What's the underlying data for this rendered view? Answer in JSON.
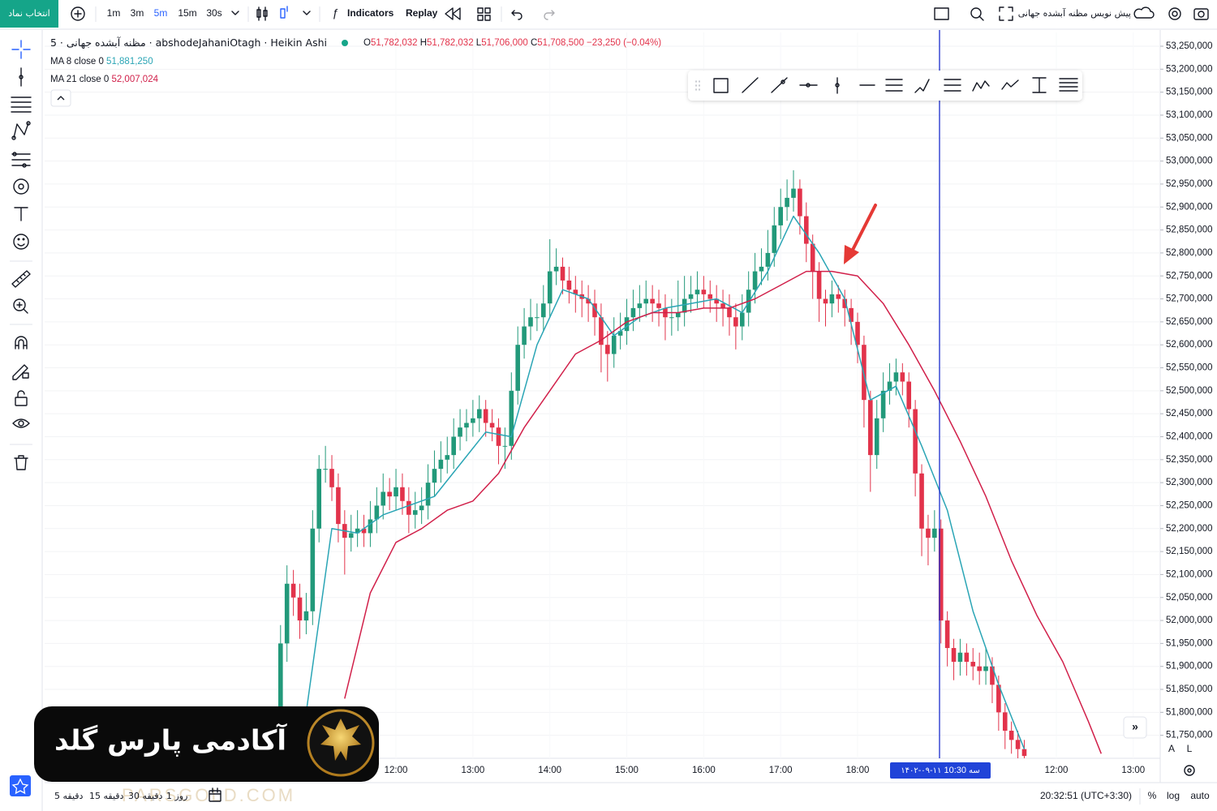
{
  "toolbar": {
    "symbol_button": "انتخاب نماد",
    "intervals": [
      "1m",
      "3m",
      "5m",
      "15m",
      "30s"
    ],
    "indicators": "Indicators",
    "replay": "Replay",
    "draft": "پیش نویس مظنه آبشده جهانی"
  },
  "chart_data": {
    "type": "candlestick",
    "title": "مظنه آبشده جهانی · 5 · abshodeJahaniOtagh · Heikin Ashi",
    "ohlc": [
      {
        "key": "O",
        "value": "51,782,032"
      },
      {
        "key": "H",
        "value": "51,782,032"
      },
      {
        "key": "L",
        "value": "51,706,000"
      },
      {
        "key": "C",
        "value": "51,708,500"
      }
    ],
    "change": "−23,250 (−0.04%)",
    "up_color": "#22997a",
    "down_color": "#e2334b",
    "series": [
      {
        "open": [
          51720000,
          51950000,
          52080000,
          52050000,
          52000000,
          52020000,
          52200000,
          52330000,
          52330000,
          52290000,
          52210000,
          52180000,
          52190000,
          52200000,
          52190000,
          52220000,
          52250000,
          52280000,
          52270000,
          52290000,
          52260000,
          52230000,
          52240000,
          52250000,
          52300000,
          52330000,
          52350000,
          52360000,
          52400000,
          52420000,
          52430000,
          52440000,
          52460000,
          52430000,
          52420000,
          52380000,
          52380000,
          52500000,
          52600000,
          52640000,
          52660000,
          52660000,
          52690000,
          52760000,
          52770000,
          52740000,
          52720000,
          52710000,
          52700000,
          52690000,
          52660000,
          52600000,
          52580000,
          52620000,
          52630000,
          52660000,
          52680000,
          52690000,
          52700000,
          52690000,
          52680000,
          52660000,
          52660000,
          52670000,
          52700000,
          52710000,
          52720000,
          52710000,
          52700000,
          52690000,
          52680000,
          52660000,
          52640000,
          52670000,
          52720000,
          52760000,
          52770000,
          52800000,
          52860000,
          52900000,
          52920000,
          52940000,
          52880000,
          52820000,
          52760000,
          52700000,
          52690000,
          52710000,
          52700000,
          52680000,
          52650000,
          52600000,
          52480000,
          52360000,
          52440000,
          52500000,
          52520000,
          52540000,
          52520000,
          52460000,
          52320000,
          52200000,
          52180000,
          52200000,
          52000000,
          51940000,
          51910000,
          51930000,
          51910000,
          51900000,
          51890000,
          51900000,
          51860000,
          51800000,
          51760000,
          51740000,
          51720000
        ],
        "high": [
          51990000,
          52120000,
          52110000,
          52080000,
          52060000,
          52240000,
          52360000,
          52380000,
          52360000,
          52320000,
          52240000,
          52230000,
          52240000,
          52230000,
          52260000,
          52290000,
          52320000,
          52310000,
          52330000,
          52320000,
          52290000,
          52280000,
          52290000,
          52340000,
          52370000,
          52390000,
          52400000,
          52440000,
          52460000,
          52460000,
          52480000,
          52490000,
          52480000,
          52460000,
          52440000,
          52420000,
          52540000,
          52640000,
          52680000,
          52700000,
          52690000,
          52730000,
          52830000,
          52810000,
          52790000,
          52770000,
          52750000,
          52740000,
          52730000,
          52720000,
          52690000,
          52630000,
          52660000,
          52670000,
          52700000,
          52720000,
          52730000,
          52740000,
          52730000,
          52720000,
          52710000,
          52700000,
          52740000,
          52750000,
          52750000,
          52760000,
          52750000,
          52740000,
          52730000,
          52720000,
          52710000,
          52690000,
          52710000,
          52760000,
          52800000,
          52810000,
          52850000,
          52900000,
          52940000,
          52960000,
          52980000,
          52960000,
          52910000,
          52840000,
          52780000,
          52720000,
          52740000,
          52730000,
          52720000,
          52700000,
          52670000,
          52620000,
          52500000,
          52480000,
          52540000,
          52560000,
          52570000,
          52560000,
          52540000,
          52480000,
          52340000,
          52230000,
          52240000,
          52220000,
          52020000,
          51960000,
          51960000,
          51950000,
          51940000,
          51930000,
          51940000,
          51920000,
          51880000,
          51820000,
          51780000,
          51760000,
          51740000
        ],
        "low": [
          51700000,
          51910000,
          52010000,
          51960000,
          51970000,
          51990000,
          52170000,
          52300000,
          52260000,
          52170000,
          52100000,
          52150000,
          52160000,
          52160000,
          52160000,
          52190000,
          52220000,
          52240000,
          52240000,
          52230000,
          52190000,
          52200000,
          52210000,
          52220000,
          52270000,
          52300000,
          52320000,
          52330000,
          52370000,
          52390000,
          52400000,
          52410000,
          52400000,
          52390000,
          52340000,
          52330000,
          52350000,
          52470000,
          52570000,
          52610000,
          52630000,
          52630000,
          52660000,
          52730000,
          52710000,
          52690000,
          52670000,
          52660000,
          52650000,
          52620000,
          52540000,
          52520000,
          52550000,
          52590000,
          52600000,
          52630000,
          52650000,
          52660000,
          52650000,
          52640000,
          52610000,
          52620000,
          52630000,
          52640000,
          52670000,
          52680000,
          52680000,
          52670000,
          52650000,
          52640000,
          52620000,
          52590000,
          52610000,
          52640000,
          52690000,
          52730000,
          52740000,
          52770000,
          52830000,
          52870000,
          52890000,
          52840000,
          52780000,
          52700000,
          52650000,
          52640000,
          52660000,
          52670000,
          52640000,
          52600000,
          52560000,
          52420000,
          52280000,
          52330000,
          52410000,
          52470000,
          52490000,
          52490000,
          52420000,
          52270000,
          52140000,
          52120000,
          52150000,
          51950000,
          51900000,
          51870000,
          51880000,
          51880000,
          51870000,
          51860000,
          51860000,
          51820000,
          51760000,
          51720000,
          51710000,
          51700000,
          51700000
        ],
        "close": [
          51950000,
          52080000,
          52050000,
          52000000,
          52020000,
          52200000,
          52330000,
          52330000,
          52290000,
          52210000,
          52180000,
          52190000,
          52200000,
          52190000,
          52220000,
          52250000,
          52280000,
          52270000,
          52290000,
          52260000,
          52230000,
          52240000,
          52250000,
          52300000,
          52330000,
          52350000,
          52360000,
          52400000,
          52420000,
          52430000,
          52440000,
          52460000,
          52430000,
          52420000,
          52380000,
          52380000,
          52500000,
          52600000,
          52640000,
          52660000,
          52660000,
          52690000,
          52760000,
          52770000,
          52740000,
          52720000,
          52710000,
          52700000,
          52690000,
          52660000,
          52600000,
          52580000,
          52620000,
          52630000,
          52660000,
          52680000,
          52690000,
          52700000,
          52690000,
          52680000,
          52660000,
          52660000,
          52670000,
          52700000,
          52710000,
          52720000,
          52710000,
          52700000,
          52690000,
          52680000,
          52660000,
          52640000,
          52670000,
          52720000,
          52760000,
          52770000,
          52800000,
          52860000,
          52900000,
          52920000,
          52940000,
          52880000,
          52820000,
          52760000,
          52700000,
          52690000,
          52710000,
          52700000,
          52680000,
          52650000,
          52600000,
          52480000,
          52360000,
          52440000,
          52500000,
          52520000,
          52540000,
          52520000,
          52460000,
          52320000,
          52200000,
          52180000,
          52200000,
          52000000,
          51940000,
          51910000,
          51930000,
          51910000,
          51900000,
          51890000,
          51900000,
          51860000,
          51800000,
          51760000,
          51740000,
          51720000,
          51705000
        ]
      }
    ],
    "lines": [
      {
        "name": "MA 8 close 0",
        "value_label": "51,881,250",
        "color": "#2aa5b5",
        "x": [
          4,
          8,
          12,
          16,
          20,
          24,
          28,
          32,
          36,
          40,
          44,
          48,
          52,
          56,
          60,
          64,
          68,
          72,
          76,
          80,
          84,
          88,
          92,
          96,
          100,
          104,
          108,
          112,
          116
        ],
        "values": [
          51800000,
          52200000,
          52190000,
          52230000,
          52250000,
          52270000,
          52340000,
          52410000,
          52400000,
          52600000,
          52720000,
          52700000,
          52620000,
          52660000,
          52680000,
          52690000,
          52700000,
          52670000,
          52760000,
          52880000,
          52800000,
          52700000,
          52480000,
          52510000,
          52380000,
          52240000,
          52020000,
          51860000,
          51720000
        ]
      },
      {
        "name": "MA 21 close 0",
        "value_label": "52,007,024",
        "color": "#d1204a",
        "x": [
          10,
          14,
          18,
          22,
          26,
          30,
          34,
          38,
          42,
          46,
          50,
          54,
          58,
          62,
          66,
          70,
          74,
          78,
          82,
          86,
          90,
          94,
          98,
          102,
          106,
          110,
          114,
          118,
          122,
          126,
          128
        ],
        "values": [
          51830000,
          52060000,
          52170000,
          52200000,
          52240000,
          52260000,
          52320000,
          52420000,
          52500000,
          52580000,
          52610000,
          52650000,
          52670000,
          52670000,
          52680000,
          52680000,
          52700000,
          52730000,
          52760000,
          52760000,
          52750000,
          52690000,
          52600000,
          52500000,
          52390000,
          52270000,
          52130000,
          52010000,
          51910000,
          51780000,
          51710000
        ]
      }
    ],
    "xlim": [
      -36.8,
      137.2
    ],
    "xticks": [
      {
        "value": 18,
        "label": "12:00"
      },
      {
        "value": 30,
        "label": "13:00"
      },
      {
        "value": 42,
        "label": "14:00"
      },
      {
        "value": 54,
        "label": "15:00"
      },
      {
        "value": 66,
        "label": "16:00"
      },
      {
        "value": 78,
        "label": "17:00"
      },
      {
        "value": 90,
        "label": "18:00"
      },
      {
        "value": 121,
        "label": "12:00"
      },
      {
        "value": 133,
        "label": "13:00"
      }
    ],
    "ylim": [
      51700000,
      53280000
    ],
    "yticks": [
      {
        "value": 51750000,
        "label": "51,750,000"
      },
      {
        "value": 51800000,
        "label": "51,800,000"
      },
      {
        "value": 51850000,
        "label": "51,850,000"
      },
      {
        "value": 51900000,
        "label": "51,900,000"
      },
      {
        "value": 51950000,
        "label": "51,950,000"
      },
      {
        "value": 52000000,
        "label": "52,000,000"
      },
      {
        "value": 52050000,
        "label": "52,050,000"
      },
      {
        "value": 52100000,
        "label": "52,100,000"
      },
      {
        "value": 52150000,
        "label": "52,150,000"
      },
      {
        "value": 52200000,
        "label": "52,200,000"
      },
      {
        "value": 52250000,
        "label": "52,250,000"
      },
      {
        "value": 52300000,
        "label": "52,300,000"
      },
      {
        "value": 52350000,
        "label": "52,350,000"
      },
      {
        "value": 52400000,
        "label": "52,400,000"
      },
      {
        "value": 52450000,
        "label": "52,450,000"
      },
      {
        "value": 52500000,
        "label": "52,500,000"
      },
      {
        "value": 52550000,
        "label": "52,550,000"
      },
      {
        "value": 52600000,
        "label": "52,600,000"
      },
      {
        "value": 52650000,
        "label": "52,650,000"
      },
      {
        "value": 52700000,
        "label": "52,700,000"
      },
      {
        "value": 52750000,
        "label": "52,750,000"
      },
      {
        "value": 52800000,
        "label": "52,800,000"
      },
      {
        "value": 52850000,
        "label": "52,850,000"
      },
      {
        "value": 52900000,
        "label": "52,900,000"
      },
      {
        "value": 52950000,
        "label": "52,950,000"
      },
      {
        "value": 53000000,
        "label": "53,000,000"
      },
      {
        "value": 53050000,
        "label": "53,050,000"
      },
      {
        "value": 53100000,
        "label": "53,100,000"
      },
      {
        "value": 53150000,
        "label": "53,150,000"
      },
      {
        "value": 53200000,
        "label": "53,200,000"
      },
      {
        "value": 53250000,
        "label": "53,250,000"
      }
    ],
    "grid": true,
    "time_marker": {
      "weekday": "سه",
      "date": "۱۴۰۲-۰۹-۱۱",
      "time": "10:30"
    }
  },
  "price_scale_buttons": [
    "A",
    "L"
  ],
  "status_bar": {
    "ranges": [
      "5 دقیقه",
      "15 دقیقه",
      "30 دقیقه",
      "1 روز"
    ],
    "clock": "20:32:51 (UTC+3:30)",
    "percent": "%",
    "log": "log",
    "auto": "auto"
  },
  "watermark": {
    "title": "آکادمی پارس گلد",
    "site": "PARSGOLD.COM"
  }
}
